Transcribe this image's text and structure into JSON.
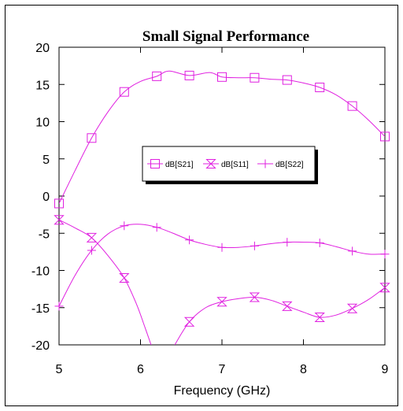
{
  "chart_data": {
    "type": "line",
    "title": "Small Signal Performance",
    "xlabel": "Frequency (GHz)",
    "ylabel": "",
    "xlim": [
      5,
      9
    ],
    "ylim": [
      -20,
      20
    ],
    "xticks": [
      "5",
      "6",
      "7",
      "8",
      "9"
    ],
    "yticks": [
      "20",
      "15",
      "10",
      "5",
      "0",
      "-5",
      "-10",
      "-15",
      "-20"
    ],
    "grid": false,
    "legend_position": "center",
    "line_color": "#e020e0",
    "series": [
      {
        "name": "dB[S21]",
        "marker": "square",
        "x": [
          5.0,
          5.2,
          5.4,
          5.6,
          5.8,
          6.0,
          6.2,
          6.35,
          6.6,
          6.85,
          7.0,
          7.2,
          7.4,
          7.6,
          7.8,
          8.0,
          8.2,
          8.4,
          8.6,
          8.8,
          9.0
        ],
        "y": [
          -1.0,
          3.5,
          7.8,
          11.3,
          14.0,
          15.4,
          16.1,
          16.8,
          16.2,
          16.6,
          16.0,
          15.9,
          15.9,
          15.7,
          15.6,
          15.2,
          14.6,
          13.6,
          12.1,
          10.2,
          8.0
        ],
        "marker_x": [
          5.0,
          5.4,
          5.8,
          6.2,
          6.6,
          7.0,
          7.4,
          7.8,
          8.2,
          8.6,
          9.0
        ],
        "marker_y": [
          -1.0,
          7.8,
          14.0,
          16.1,
          16.2,
          16.0,
          15.9,
          15.6,
          14.6,
          12.1,
          8.0
        ]
      },
      {
        "name": "dB[S11]",
        "marker": "hourglass",
        "segments": [
          {
            "x": [
              5.0,
              5.2,
              5.4,
              5.6,
              5.8,
              5.95,
              6.05,
              6.13
            ],
            "y": [
              -3.2,
              -4.3,
              -5.6,
              -8.0,
              -11.0,
              -14.5,
              -17.5,
              -20.0
            ]
          },
          {
            "x": [
              6.42,
              6.6,
              6.8,
              7.0,
              7.2,
              7.4,
              7.6,
              7.8,
              8.0,
              8.2,
              8.4,
              8.6,
              8.8,
              9.0
            ],
            "y": [
              -20.0,
              -16.9,
              -15.0,
              -14.2,
              -13.8,
              -13.6,
              -14.0,
              -14.8,
              -15.6,
              -16.3,
              -16.0,
              -15.1,
              -13.9,
              -12.3
            ]
          }
        ],
        "marker_x": [
          5.0,
          5.4,
          5.8,
          6.6,
          7.0,
          7.4,
          7.8,
          8.2,
          8.6,
          9.0
        ],
        "marker_y": [
          -3.2,
          -5.6,
          -11.0,
          -16.9,
          -14.2,
          -13.6,
          -14.8,
          -16.3,
          -15.1,
          -12.3
        ]
      },
      {
        "name": "dB[S22]",
        "marker": "plus",
        "x": [
          5.0,
          5.2,
          5.4,
          5.6,
          5.8,
          6.0,
          6.2,
          6.4,
          6.6,
          6.8,
          7.0,
          7.2,
          7.4,
          7.6,
          7.8,
          8.0,
          8.2,
          8.4,
          8.6,
          8.8,
          9.0
        ],
        "y": [
          -14.8,
          -10.6,
          -7.3,
          -5.1,
          -4.0,
          -3.8,
          -4.2,
          -5.0,
          -5.9,
          -6.5,
          -6.9,
          -6.9,
          -6.7,
          -6.4,
          -6.2,
          -6.2,
          -6.3,
          -6.8,
          -7.4,
          -7.8,
          -7.8
        ],
        "marker_x": [
          5.0,
          5.4,
          5.8,
          6.2,
          6.6,
          7.0,
          7.4,
          7.8,
          8.2,
          8.6,
          9.0
        ],
        "marker_y": [
          -14.8,
          -7.3,
          -4.0,
          -4.2,
          -5.9,
          -6.9,
          -6.7,
          -6.2,
          -6.3,
          -7.4,
          -7.8
        ]
      }
    ]
  }
}
